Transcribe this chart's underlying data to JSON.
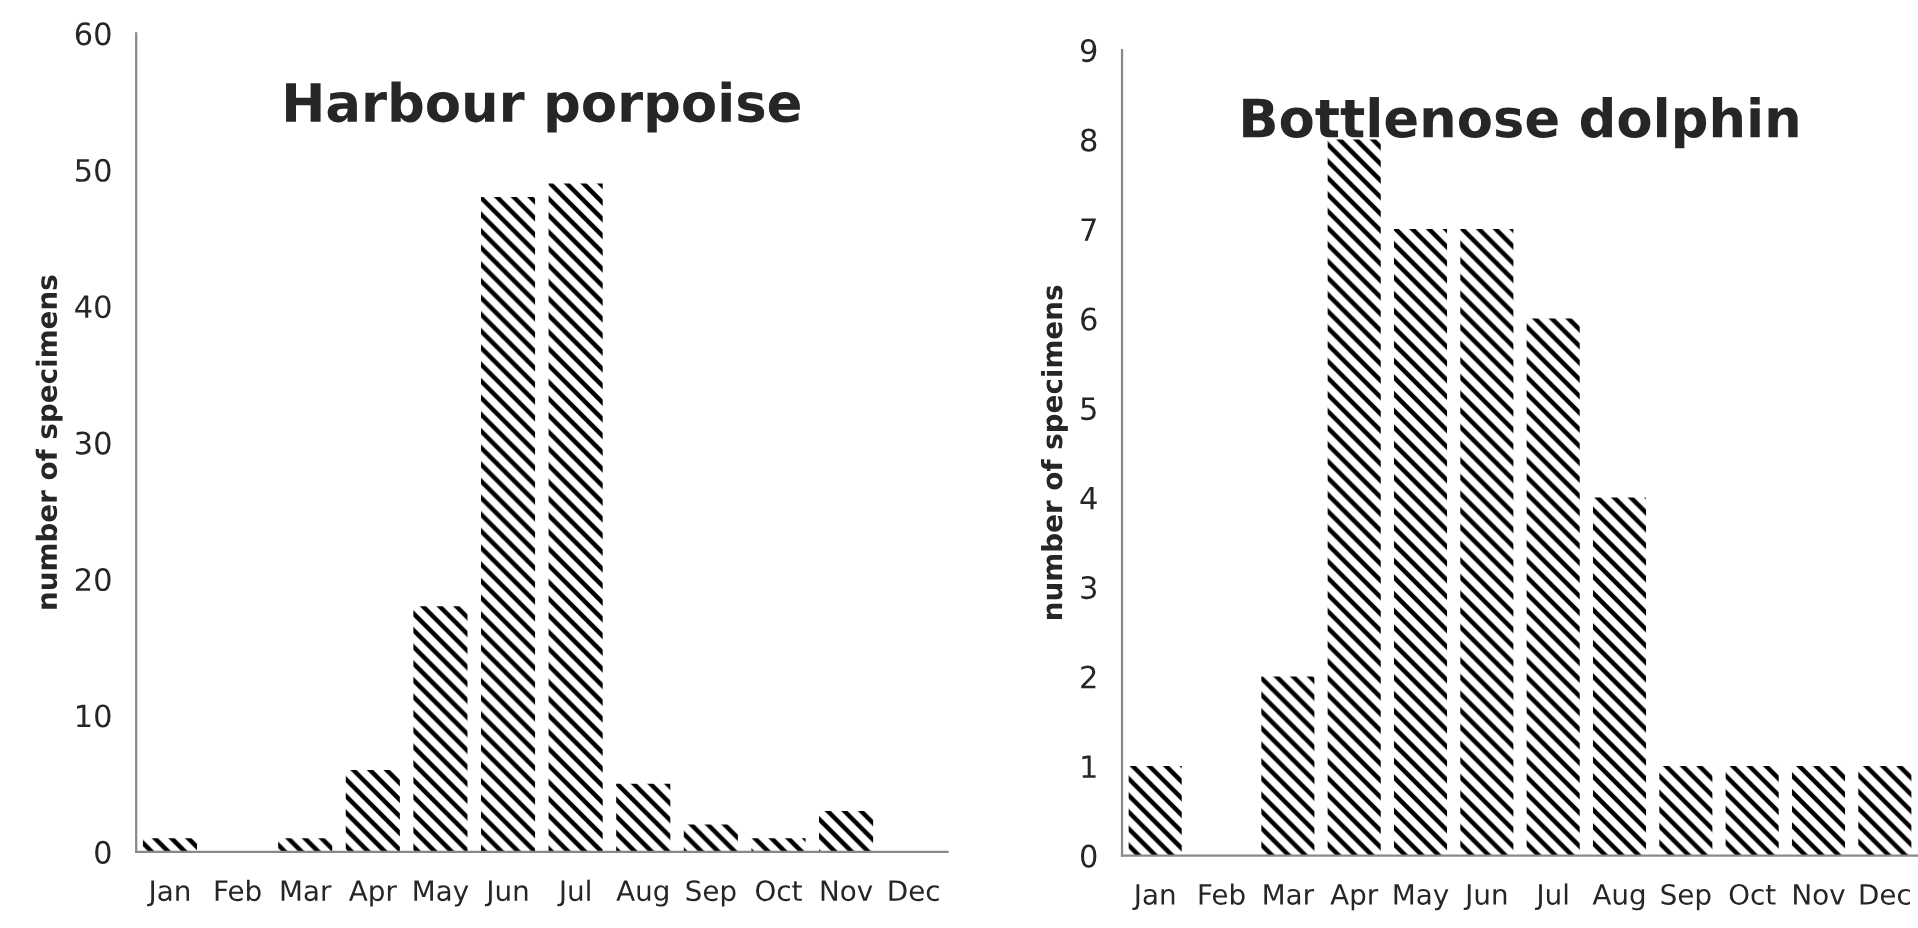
{
  "chart_data": [
    {
      "type": "bar",
      "title": "Harbour porpoise",
      "ylabel": "number of specimens",
      "categories": [
        "Jan",
        "Feb",
        "Mar",
        "Apr",
        "May",
        "Jun",
        "Jul",
        "Aug",
        "Sep",
        "Oct",
        "Nov",
        "Dec"
      ],
      "values": [
        1,
        0,
        1,
        6,
        18,
        48,
        49,
        5,
        2,
        1,
        3,
        0
      ],
      "color": "#000000",
      "ylim": [
        0,
        60
      ],
      "yticks": [
        0,
        10,
        20,
        30,
        40,
        50,
        60
      ],
      "grid": false
    },
    {
      "type": "bar",
      "title": "Bottlenose dolphin",
      "ylabel": "number of specimens",
      "categories": [
        "Jan",
        "Feb",
        "Mar",
        "Apr",
        "May",
        "Jun",
        "Jul",
        "Aug",
        "Sep",
        "Oct",
        "Nov",
        "Dec"
      ],
      "values": [
        1,
        0,
        2,
        8,
        7,
        7,
        6,
        4,
        1,
        1,
        1,
        1
      ],
      "color": "#000000",
      "ylim": [
        0,
        9
      ],
      "yticks": [
        0,
        1,
        2,
        3,
        4,
        5,
        6,
        7,
        8,
        9
      ],
      "grid": false
    }
  ]
}
